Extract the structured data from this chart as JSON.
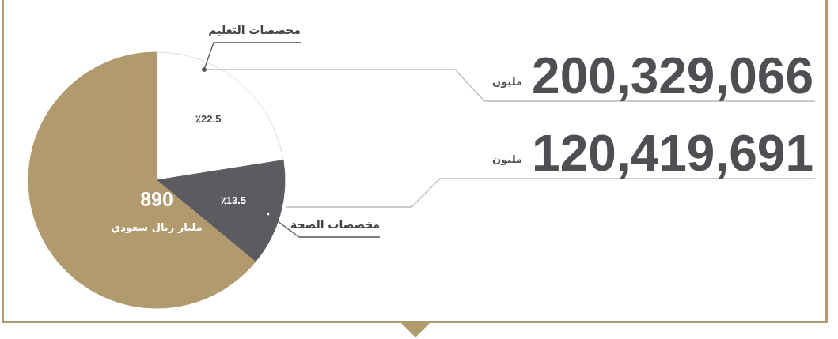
{
  "chart_data": {
    "type": "pie",
    "categories": [
      "مخصصات التعليم",
      "مخصصات الصحة",
      null
    ],
    "values": [
      22.5,
      13.5,
      64
    ],
    "colors": [
      "#ffffff",
      "#5c5b60",
      "#b09a6e"
    ],
    "value_labels": [
      "٪22.5",
      "٪13.5",
      null
    ],
    "legend": false,
    "annotations": [
      "200,329,066",
      "مليون",
      "120,419,691",
      "مليون",
      "890",
      "مليار ريال سعودي"
    ]
  }
}
